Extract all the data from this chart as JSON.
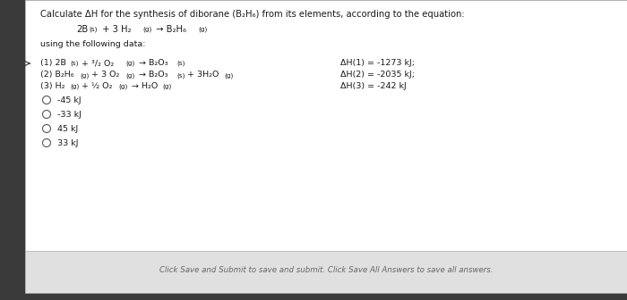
{
  "title_line1": "Calculate ΔH for the synthesis of diborane (B₂H₆) from its elements, according to the equation:",
  "equation_parts": [
    "2B",
    "(s)",
    " + 3 H₂",
    "(g)",
    " → B₂H₆",
    "(g)"
  ],
  "using_text": "using the following data:",
  "delta_h": [
    "ΔH(1) = -1273 kJ;",
    "ΔH(2) = -2035 kJ;",
    "ΔH(3) = -242 kJ"
  ],
  "choices": [
    "-45 kJ",
    "-33 kJ",
    "45 kJ",
    "33 kJ"
  ],
  "footer": "Click Save and Submit to save and submit. Click Save All Answers to save all answers.",
  "border_color": "#3a3a3a",
  "main_bg": "#f5f5f5",
  "content_bg": "#ffffff",
  "footer_bg": "#e0e0e0",
  "text_color": "#1a1a1a",
  "gray_text": "#666666",
  "font_size_title": 7.2,
  "font_size_body": 6.8,
  "font_size_sub": 5.2,
  "font_size_footer": 6.2
}
